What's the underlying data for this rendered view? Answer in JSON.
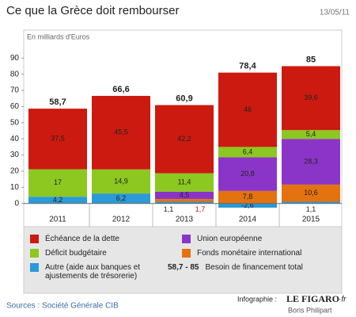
{
  "chart_data": {
    "type": "stacked_bar",
    "title": "Ce que la Grèce doit rembourser",
    "date": "13/05/11",
    "y_label": "En milliards d'Euros",
    "categories": [
      "2011",
      "2012",
      "2013",
      "2014",
      "2015"
    ],
    "series": [
      {
        "name": "Autre (aide aux banques et ajustements de trésorerie)",
        "color": "#2b9ad6",
        "values": [
          4.2,
          6.2,
          1.1,
          -2.6,
          1.1
        ],
        "value_labels": [
          "4,2",
          "6,2",
          "1,1",
          "-2,6",
          "1,1"
        ]
      },
      {
        "name": "Fonds monétaire international",
        "color": "#e3720f",
        "values": [
          null,
          null,
          1.7,
          7.8,
          10.6
        ],
        "value_labels": [
          null,
          null,
          "1,7",
          "7,8",
          "10,6"
        ]
      },
      {
        "name": "Union européenne",
        "color": "#8b35c8",
        "values": [
          null,
          null,
          4.5,
          20.8,
          28.3
        ],
        "value_labels": [
          null,
          null,
          "4,5",
          "20,8",
          "28,3"
        ]
      },
      {
        "name": "Déficit budgétaire",
        "color": "#8cc820",
        "values": [
          17,
          14.9,
          11.4,
          6.4,
          5.4
        ],
        "value_labels": [
          "17",
          "14,9",
          "11,4",
          "6,4",
          "5,4"
        ]
      },
      {
        "name": "Échéance de la dette",
        "color": "#cc1a10",
        "values": [
          37.5,
          45.5,
          42.2,
          46,
          39.6
        ],
        "value_labels": [
          "37,5",
          "45,5",
          "42,2",
          "46",
          "39,6"
        ]
      }
    ],
    "totals": [
      58.7,
      66.6,
      60.9,
      78.4,
      85
    ],
    "total_labels": [
      "58,7",
      "66,6",
      "60,9",
      "78,4",
      "85"
    ],
    "total_legend": {
      "range": "58,7 - 85",
      "label": "Besoin de financement total"
    },
    "ylim": [
      -6,
      97
    ],
    "yticks": [
      0,
      10,
      20,
      30,
      40,
      50,
      60,
      70,
      80,
      90
    ],
    "source": "Sources : Société Générale CIB",
    "credit": "Infographie :",
    "brand": "LE FIGARO",
    "brand_suffix": "·fr",
    "author": "Boris Philipart"
  }
}
